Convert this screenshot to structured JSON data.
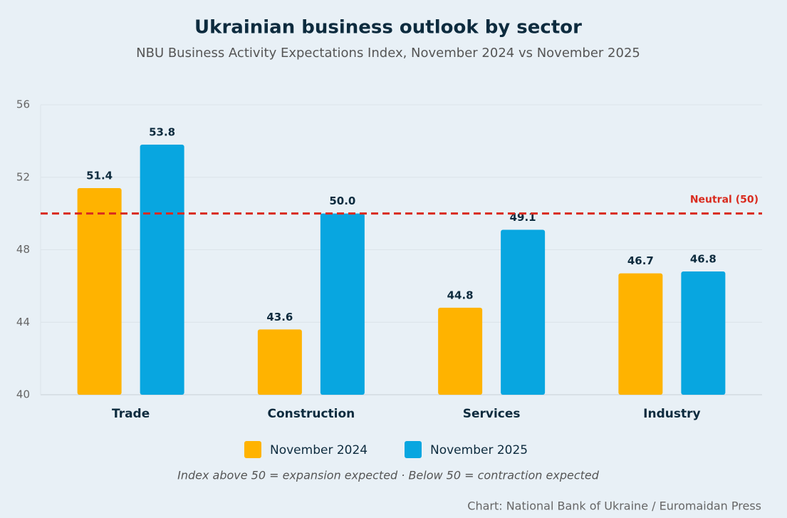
{
  "chart_data": {
    "type": "bar",
    "title": "Ukrainian business outlook by sector",
    "subtitle": "NBU Business Activity Expectations Index, November 2024 vs November 2025",
    "categories": [
      "Trade",
      "Construction",
      "Services",
      "Industry"
    ],
    "series": [
      {
        "name": "November 2024",
        "color": "#ffb300",
        "values": [
          51.4,
          43.6,
          44.8,
          46.7
        ]
      },
      {
        "name": "November 2025",
        "color": "#08a6e0",
        "values": [
          53.8,
          50.0,
          49.1,
          46.8
        ],
        "value_labels": [
          "53.8",
          "50.0",
          "49.1",
          "46.8"
        ]
      }
    ],
    "ylim": [
      40,
      56
    ],
    "yticks": [
      40,
      44,
      48,
      52,
      56
    ],
    "grid": true,
    "reference_line": {
      "value": 50,
      "label": "Neutral (50)",
      "color": "#d92b1f"
    },
    "note": "Index above 50 = expansion expected · Below 50 = contraction expected",
    "source": "Chart: National Bank of Ukraine / Euromaidan Press"
  }
}
